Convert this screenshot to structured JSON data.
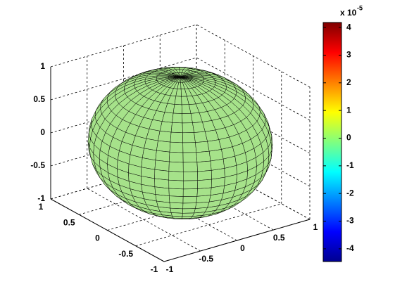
{
  "chart_data": {
    "type": "surface",
    "xlim": [
      -1,
      1
    ],
    "xticks": [
      -1,
      -0.5,
      0,
      0.5,
      1
    ],
    "ylim": [
      -1,
      1
    ],
    "yticks": [
      -1,
      -0.5,
      0,
      0.5,
      1
    ],
    "zlim": [
      -1,
      1
    ],
    "zticks": [
      -1,
      -0.5,
      0,
      0.5,
      1
    ],
    "grid": true,
    "colorbar": {
      "clim": [
        -4.46,
        4.18
      ],
      "ticks": [
        -4,
        -3,
        -2,
        -1,
        0,
        1,
        2,
        3,
        4
      ],
      "scale_base": "x 10",
      "scale_exponent": "-5",
      "colormap": "jet"
    }
  }
}
